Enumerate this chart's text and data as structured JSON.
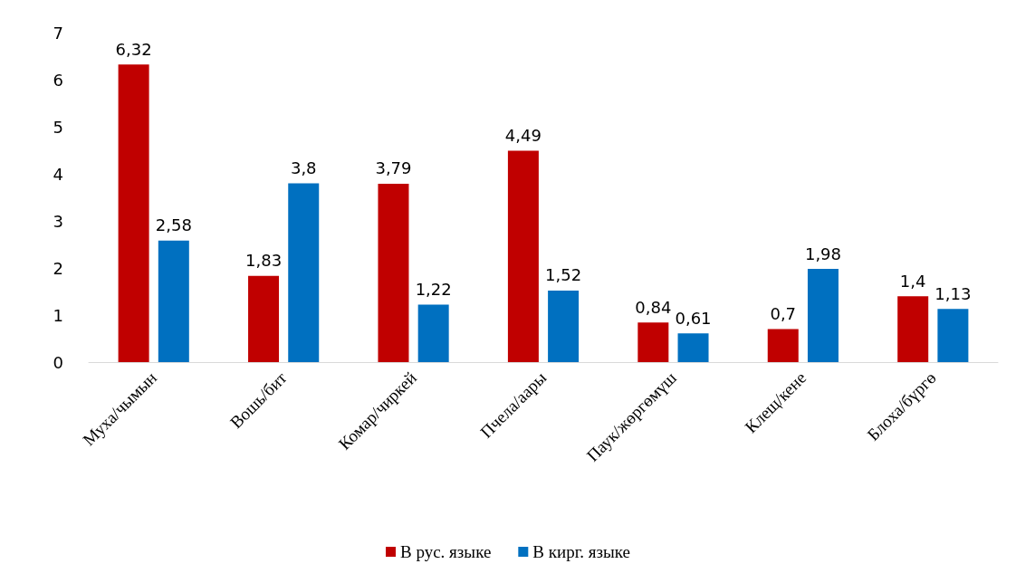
{
  "chart_data": {
    "type": "bar",
    "categories": [
      "Муха/чымын",
      "Вошь/бит",
      "Комар/чиркей",
      "Пчела/аары",
      "Паук/жөргөмүш",
      "Клещ/кене",
      "Блоха/бүргө"
    ],
    "series": [
      {
        "name": "В рус. языке",
        "color": "#c00000",
        "values": [
          6.32,
          1.83,
          3.79,
          4.49,
          0.84,
          0.7,
          1.4
        ],
        "value_labels": [
          "6,32",
          "1,83",
          "3,79",
          "4,49",
          "0,84",
          "0,7",
          "1,4"
        ]
      },
      {
        "name": "В кирг. языке",
        "color": "#0070c0",
        "values": [
          2.58,
          3.8,
          1.22,
          1.52,
          0.61,
          1.98,
          1.13
        ],
        "value_labels": [
          "2,58",
          "3,8",
          "1,22",
          "1,52",
          "0,61",
          "1,98",
          "1,13"
        ]
      }
    ],
    "ylim": [
      0,
      7
    ],
    "yticks": [
      0,
      1,
      2,
      3,
      4,
      5,
      6,
      7
    ],
    "grid": false,
    "legend": "bottom"
  }
}
